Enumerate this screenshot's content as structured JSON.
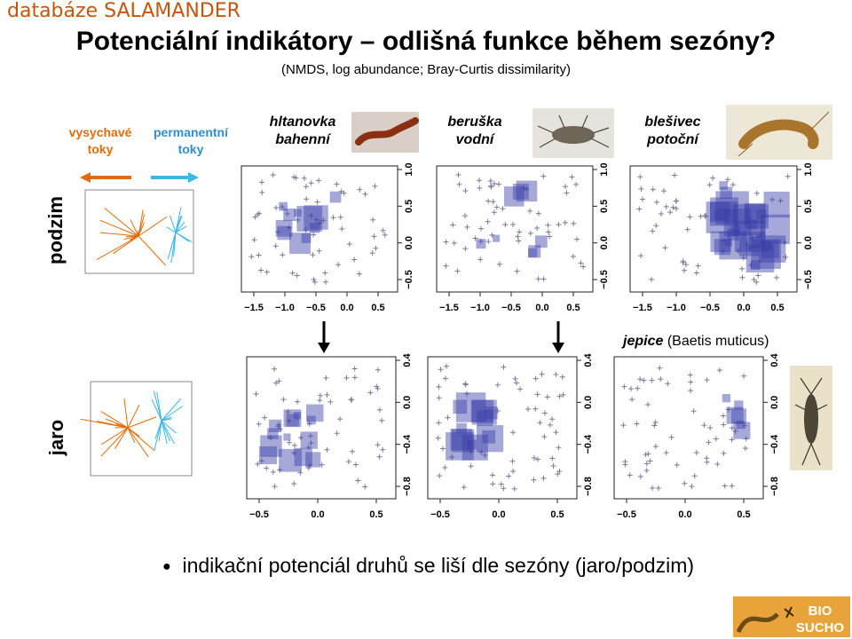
{
  "header": {
    "database": "databáze SALAMANDER",
    "title": "Potenciální indikátory – odlišná funkce během sezóny?",
    "subtitle": "(NMDS, log abundance; Bray-Curtis dissimilarity)"
  },
  "legend": {
    "intermittent": "vysychavé\ntoky",
    "permanent": "permanentní\ntoky",
    "colors": {
      "intermittent": "#e36c09",
      "permanent": "#3ab8e8"
    }
  },
  "species": [
    {
      "line1": "hltanovka",
      "line2": "bahenní"
    },
    {
      "line1": "beruška",
      "line2": "vodní"
    },
    {
      "line1": "blešivec",
      "line2": "potoční"
    }
  ],
  "mayfly": {
    "name": "jepice",
    "latin": "(Baetis muticus)"
  },
  "rows": {
    "autumn": "podzim",
    "spring": "jaro"
  },
  "axes": {
    "autumn_x_ticks": [
      "−1.5",
      "−1.0",
      "−0.5",
      "0.0",
      "0.5"
    ],
    "autumn_y_ticks": [
      "1.0",
      "0.5",
      "0.0",
      "−0.5"
    ],
    "spring_x_ticks": [
      "−0.5",
      "0.0",
      "0.5"
    ],
    "spring_y_ticks": [
      "0.4",
      "0.0",
      "−0.4",
      "−0.8"
    ]
  },
  "bullet": "indikační potenciál druhů se liší dle sezóny (jaro/podzim)",
  "logo": {
    "line1": "BIO",
    "line2": "SUCHO"
  }
}
